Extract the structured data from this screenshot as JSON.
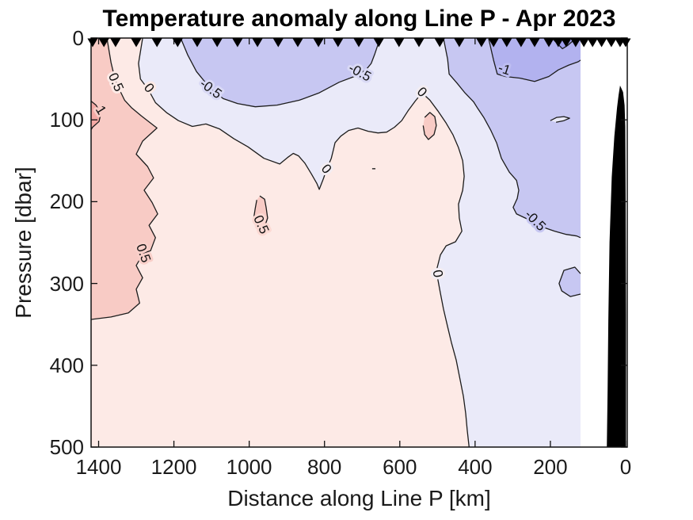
{
  "title": "Temperature anomaly along Line P - Apr 2023",
  "axes": {
    "xlabel": "Distance along Line P [km]",
    "ylabel": "Pressure [dbar]",
    "x_ticks": [
      1400,
      1200,
      1000,
      800,
      600,
      400,
      200,
      0
    ],
    "y_ticks": [
      0,
      100,
      200,
      300,
      400,
      500
    ],
    "x_range": [
      1420,
      -4.2
    ],
    "y_range": [
      0,
      500
    ],
    "x_direction": "reversed",
    "box": "on",
    "tick_dir": "in"
  },
  "chart_data": {
    "type": "filled_contour",
    "units": {
      "x": "km",
      "y": "dbar",
      "z": "degC anomaly"
    },
    "contour_levels": [
      -1.5,
      -1,
      -0.5,
      0,
      0.5,
      1
    ],
    "data_edge_km": 120,
    "band_colors": {
      "1_1.5": "#f4a9a4",
      "0.5_1": "#f8cbc5",
      "0_0.5": "#fdeae6",
      "-0.5_0": "#eaeaf9",
      "-1_-0.5": "#c7c7f2",
      "-1.5_-1": "#b2b2ef",
      "-2_-1.5": "#9e9eec",
      "land": "#000000",
      "contour_line": "#1c1c1c",
      "marker": "#000000"
    },
    "stations_km": [
      1416,
      1386,
      1355,
      1300,
      1245,
      1190,
      1138,
      1085,
      1031,
      978,
      923,
      871,
      816,
      764,
      709,
      656,
      602,
      549,
      494,
      442,
      383,
      351,
      316,
      278,
      242,
      204,
      179,
      158,
      133,
      111,
      88,
      64,
      38,
      15,
      0
    ],
    "regions": [
      {
        "name": "negative-0-to-0.5",
        "band": "-0.5_0",
        "outline": [
          [
            1283,
            0
          ],
          [
            1294,
            31
          ],
          [
            1289,
            50
          ],
          [
            1268,
            63
          ],
          [
            1249,
            79
          ],
          [
            1220,
            91
          ],
          [
            1188,
            101
          ],
          [
            1151,
            108
          ],
          [
            1115,
            105
          ],
          [
            1079,
            111
          ],
          [
            1041,
            123
          ],
          [
            1003,
            133
          ],
          [
            961,
            147
          ],
          [
            919,
            154
          ],
          [
            898,
            146
          ],
          [
            883,
            141
          ],
          [
            869,
            144
          ],
          [
            852,
            153
          ],
          [
            835,
            166
          ],
          [
            820,
            178
          ],
          [
            814,
            185
          ],
          [
            803,
            172
          ],
          [
            793,
            159
          ],
          [
            782,
            147
          ],
          [
            776,
            136
          ],
          [
            772,
            128
          ],
          [
            757,
            120
          ],
          [
            736,
            113
          ],
          [
            711,
            110
          ],
          [
            684,
            114
          ],
          [
            658,
            116
          ],
          [
            635,
            115
          ],
          [
            614,
            109
          ],
          [
            595,
            101
          ],
          [
            578,
            89
          ],
          [
            559,
            77
          ],
          [
            541,
            67
          ],
          [
            520,
            76
          ],
          [
            499,
            89
          ],
          [
            477,
            104
          ],
          [
            459,
            118
          ],
          [
            444,
            134
          ],
          [
            433,
            150
          ],
          [
            429,
            169
          ],
          [
            433,
            186
          ],
          [
            444,
            203
          ],
          [
            442,
            220
          ],
          [
            435,
            236
          ],
          [
            452,
            249
          ],
          [
            477,
            254
          ],
          [
            492,
            265
          ],
          [
            501,
            281
          ],
          [
            499,
            295
          ],
          [
            492,
            312
          ],
          [
            484,
            331
          ],
          [
            473,
            353
          ],
          [
            463,
            372
          ],
          [
            450,
            394
          ],
          [
            440,
            417
          ],
          [
            431,
            438
          ],
          [
            425,
            459
          ],
          [
            421,
            479
          ],
          [
            416,
            500
          ]
        ],
        "close": [
          [
            120,
            500
          ],
          [
            120,
            0
          ]
        ]
      },
      {
        "name": "topleft-minus0.5-patch",
        "band": "-1_-0.5",
        "outline": [
          [
            1182,
            0
          ],
          [
            1163,
            21
          ],
          [
            1140,
            41
          ],
          [
            1115,
            55
          ],
          [
            1094,
            65
          ],
          [
            1069,
            74
          ],
          [
            1031,
            80
          ],
          [
            984,
            84
          ],
          [
            926,
            82
          ],
          [
            867,
            76
          ],
          [
            814,
            67
          ],
          [
            761,
            54
          ],
          [
            721,
            47
          ],
          [
            690,
            39
          ],
          [
            676,
            31
          ],
          [
            666,
            19
          ],
          [
            658,
            8
          ],
          [
            652,
            0
          ]
        ],
        "close": []
      },
      {
        "name": "right-minus0.5-band",
        "band": "-1_-0.5",
        "outline": [
          [
            484,
            0
          ],
          [
            473,
            26
          ],
          [
            469,
            44
          ],
          [
            448,
            55
          ],
          [
            427,
            67
          ],
          [
            404,
            78
          ],
          [
            393,
            86
          ],
          [
            377,
            97
          ],
          [
            358,
            113
          ],
          [
            343,
            128
          ],
          [
            330,
            147
          ],
          [
            309,
            164
          ],
          [
            290,
            174
          ],
          [
            284,
            186
          ],
          [
            288,
            196
          ],
          [
            299,
            207
          ],
          [
            290,
            215
          ],
          [
            267,
            220
          ],
          [
            240,
            226
          ],
          [
            215,
            232
          ],
          [
            189,
            236
          ],
          [
            158,
            240
          ],
          [
            130,
            242
          ],
          [
            120,
            244
          ]
        ],
        "close": [
          [
            120,
            0
          ]
        ]
      },
      {
        "name": "right-minus0.5-blob",
        "band": "-1_-0.5",
        "outline": [
          [
            120,
            288
          ],
          [
            135,
            280
          ],
          [
            164,
            284
          ],
          [
            177,
            300
          ],
          [
            170,
            309
          ],
          [
            147,
            316
          ],
          [
            120,
            313
          ]
        ],
        "close": []
      },
      {
        "name": "topright-minus1-region",
        "band": "-1.5_-1",
        "outline": [
          [
            364,
            1
          ],
          [
            351,
            27
          ],
          [
            341,
            44
          ],
          [
            320,
            47
          ],
          [
            280,
            49
          ],
          [
            242,
            53
          ],
          [
            204,
            47
          ],
          [
            179,
            39
          ],
          [
            151,
            33
          ],
          [
            126,
            29
          ],
          [
            120,
            27
          ]
        ],
        "close": [
          [
            120,
            0
          ]
        ]
      },
      {
        "name": "topright-minus1.5-pocket",
        "band": "-2_-1.5",
        "outline": [
          [
            196,
            0
          ],
          [
            183,
            6
          ],
          [
            168,
            13
          ],
          [
            154,
            9
          ],
          [
            139,
            3
          ],
          [
            130,
            0
          ]
        ],
        "close": []
      },
      {
        "name": "white-lens",
        "band": "-0.5_0",
        "outline": [
          [
            200,
            101
          ],
          [
            183,
            97
          ],
          [
            164,
            96
          ],
          [
            149,
            98
          ],
          [
            164,
            101
          ],
          [
            185,
            103
          ]
        ],
        "close": []
      },
      {
        "name": "left-positive-0.5-band",
        "band": "0.5_1",
        "outline": [
          [
            1378,
            0
          ],
          [
            1367,
            30
          ],
          [
            1357,
            49
          ],
          [
            1350,
            58
          ],
          [
            1331,
            76
          ],
          [
            1313,
            85
          ],
          [
            1287,
            95
          ],
          [
            1262,
            104
          ],
          [
            1245,
            110
          ],
          [
            1283,
            126
          ],
          [
            1300,
            142
          ],
          [
            1270,
            157
          ],
          [
            1254,
            171
          ],
          [
            1279,
            186
          ],
          [
            1258,
            201
          ],
          [
            1243,
            215
          ],
          [
            1266,
            229
          ],
          [
            1249,
            244
          ],
          [
            1262,
            260
          ],
          [
            1281,
            263
          ],
          [
            1300,
            278
          ],
          [
            1283,
            293
          ],
          [
            1300,
            307
          ],
          [
            1291,
            324
          ],
          [
            1321,
            336
          ],
          [
            1367,
            341
          ],
          [
            1420,
            344
          ]
        ],
        "close": [
          [
            1420,
            0
          ]
        ]
      },
      {
        "name": "left-plus1-blob",
        "band": "1_1.5",
        "outline": [
          [
            1420,
            77
          ],
          [
            1407,
            82
          ],
          [
            1394,
            92
          ],
          [
            1399,
            102
          ],
          [
            1416,
            109
          ],
          [
            1420,
            112
          ]
        ],
        "close": []
      },
      {
        "name": "small-warm-island-top",
        "band": "0.5_1",
        "outline": [
          [
            534,
            97
          ],
          [
            520,
            91
          ],
          [
            507,
            96
          ],
          [
            503,
            107
          ],
          [
            509,
            118
          ],
          [
            524,
            124
          ],
          [
            534,
            118
          ],
          [
            538,
            107
          ]
        ],
        "close": []
      },
      {
        "name": "small-warm-island-mid",
        "band": "0.5_1",
        "outline": [
          [
            972,
            193
          ],
          [
            959,
            197
          ],
          [
            955,
            207
          ],
          [
            951,
            220
          ],
          [
            959,
            231
          ],
          [
            978,
            233
          ],
          [
            989,
            223
          ],
          [
            984,
            208
          ],
          [
            980,
            198
          ]
        ],
        "close": []
      }
    ],
    "land": {
      "name": "coastal-bathymetry-mask",
      "outline": [
        [
          15,
          58
        ],
        [
          7,
          66
        ],
        [
          3,
          82
        ],
        [
          1,
          108
        ],
        [
          0,
          200
        ],
        [
          -1,
          340
        ],
        [
          -1,
          500
        ],
        [
          50,
          500
        ],
        [
          48,
          430
        ],
        [
          46,
          345
        ],
        [
          43,
          250
        ],
        [
          37,
          170
        ],
        [
          30,
          120
        ],
        [
          23,
          85
        ],
        [
          19,
          70
        ]
      ]
    },
    "contour_labels": [
      {
        "text": "0.5",
        "km": 1354,
        "dbar": 54,
        "rot": 66,
        "halo": "#fdeae6"
      },
      {
        "text": "0",
        "km": 1266,
        "dbar": 61,
        "rot": 52,
        "halo": "#fdeae6"
      },
      {
        "text": "1",
        "km": 1394,
        "dbar": 88,
        "rot": 58,
        "halo": "#f8cbc5"
      },
      {
        "text": "-0.5",
        "km": 1102,
        "dbar": 62,
        "rot": 36,
        "halo": "#d9d9f5"
      },
      {
        "text": "-0.5",
        "km": 706,
        "dbar": 42,
        "rot": 28,
        "halo": "#d9d9f5"
      },
      {
        "text": "-1",
        "km": 322,
        "dbar": 38,
        "rot": 18,
        "halo": "#bdbdf1"
      },
      {
        "text": "0",
        "km": 541,
        "dbar": 66,
        "rot": 45,
        "halo": "#f3edf2"
      },
      {
        "text": "0",
        "km": 795,
        "dbar": 160,
        "rot": 50,
        "halo": "#f3edf2"
      },
      {
        "text": "-",
        "km": 669,
        "dbar": 159,
        "rot": 0,
        "halo": "#fdeae6"
      },
      {
        "text": "0.5",
        "km": 968,
        "dbar": 228,
        "rot": 65,
        "halo": "#fbd9d3"
      },
      {
        "text": "0",
        "km": 499,
        "dbar": 288,
        "rot": 80,
        "halo": "#f3edf2"
      },
      {
        "text": "0.5",
        "km": 1281,
        "dbar": 263,
        "rot": 70,
        "halo": "#f9cfc9"
      },
      {
        "text": "-0.5",
        "km": 240,
        "dbar": 223,
        "rot": 45,
        "halo": "#c7c7f2"
      }
    ]
  }
}
